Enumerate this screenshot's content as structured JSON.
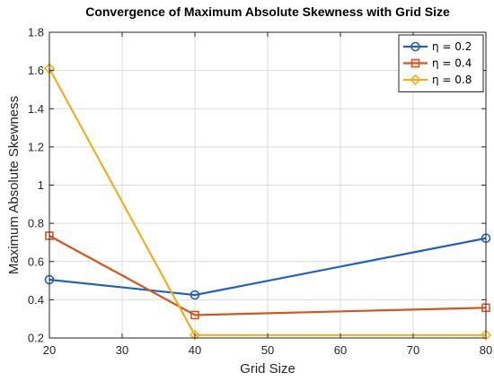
{
  "chart_data": {
    "type": "line",
    "title": "Convergence of Maximum Absolute Skewness with Grid Size",
    "xlabel": "Grid Size",
    "ylabel": "Maximum Absolute Skewness",
    "xlim": [
      20,
      80
    ],
    "ylim": [
      0.2,
      1.8
    ],
    "x_ticks": [
      20,
      30,
      40,
      50,
      60,
      70,
      80
    ],
    "y_ticks": [
      0.2,
      0.4,
      0.6,
      0.8,
      1,
      1.2,
      1.4,
      1.6,
      1.8
    ],
    "grid": true,
    "legend_position": "top-right",
    "x": [
      20,
      40,
      80
    ],
    "series": [
      {
        "name": "η = 0.2",
        "values": [
          0.505,
          0.425,
          0.722
        ],
        "color": "#1f5fbf",
        "marker": "circle"
      },
      {
        "name": "η = 0.4",
        "values": [
          0.735,
          0.32,
          0.358
        ],
        "color": "#d95319",
        "marker": "square"
      },
      {
        "name": "η = 0.8",
        "values": [
          1.61,
          0.215,
          0.215
        ],
        "color": "#edb120",
        "marker": "diamond"
      }
    ]
  }
}
